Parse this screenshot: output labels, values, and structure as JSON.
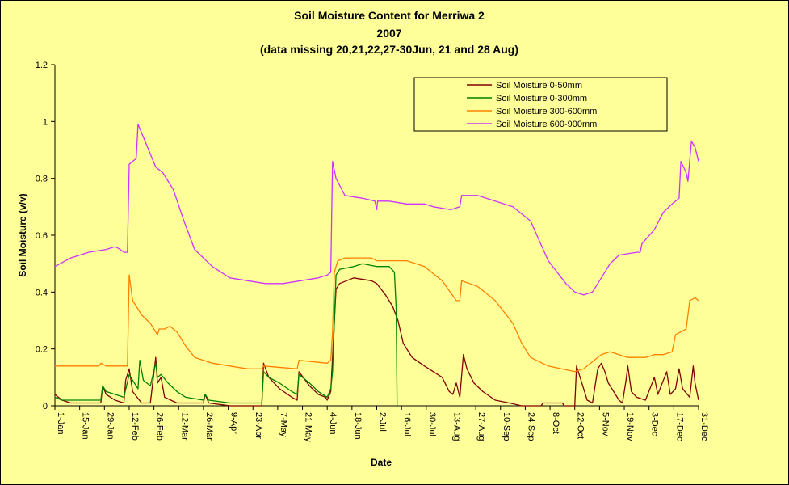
{
  "chart_data": {
    "type": "line",
    "title_lines": [
      "Soil Moisture Content for Merriwa 2",
      "2007",
      "(data missing 20,21,22,27-30Jun, 21 and 28 Aug)"
    ],
    "xlabel": "Date",
    "ylabel": "Soil Moisture (v/v)",
    "ylim": [
      0,
      1.2
    ],
    "yticks": [
      "0",
      "0.2",
      "0.4",
      "0.6",
      "0.8",
      "1",
      "1.2"
    ],
    "xlim": [
      1,
      365
    ],
    "xtick_days": [
      1,
      15,
      29,
      43,
      57,
      71,
      85,
      99,
      113,
      127,
      141,
      155,
      169,
      183,
      197,
      211,
      225,
      239,
      253,
      267,
      281,
      295,
      309,
      323,
      337,
      351,
      365
    ],
    "xtick_labels": [
      "1-Jan",
      "15-Jan",
      "29-Jan",
      "12-Feb",
      "26-Feb",
      "12-Mar",
      "26-Mar",
      "9-Apr",
      "23-Apr",
      "7-May",
      "21-May",
      "4-Jun",
      "18-Jun",
      "2-Jul",
      "16-Jul",
      "30-Jul",
      "13-Aug",
      "27-Aug",
      "10-Sep",
      "24-Sep",
      "8-Oct",
      "22-Oct",
      "5-Nov",
      "19-Nov",
      "3-Dec",
      "17-Dec",
      "31-Dec"
    ],
    "grid": false,
    "legend_position": "top-right",
    "series": [
      {
        "name": "Soil Moisture 0-50mm",
        "color": "#800000",
        "points": [
          [
            1,
            0.04
          ],
          [
            5,
            0.02
          ],
          [
            10,
            0.01
          ],
          [
            20,
            0.01
          ],
          [
            27,
            0.01
          ],
          [
            28,
            0.07
          ],
          [
            30,
            0.04
          ],
          [
            35,
            0.02
          ],
          [
            40,
            0.01
          ],
          [
            41,
            0.09
          ],
          [
            43,
            0.13
          ],
          [
            45,
            0.05
          ],
          [
            50,
            0.01
          ],
          [
            55,
            0.01
          ],
          [
            58,
            0.17
          ],
          [
            59,
            0.08
          ],
          [
            61,
            0.1
          ],
          [
            63,
            0.03
          ],
          [
            70,
            0.01
          ],
          [
            85,
            0.01
          ],
          [
            86,
            0.04
          ],
          [
            88,
            0.01
          ],
          [
            100,
            0
          ],
          [
            118,
            0
          ],
          [
            119,
            0.15
          ],
          [
            122,
            0.1
          ],
          [
            128,
            0.06
          ],
          [
            135,
            0.03
          ],
          [
            138,
            0.02
          ],
          [
            139,
            0.12
          ],
          [
            145,
            0.07
          ],
          [
            150,
            0.04
          ],
          [
            154,
            0.03
          ],
          [
            155,
            0.02
          ],
          [
            157,
            0.05
          ],
          [
            160,
            0.41
          ],
          [
            162,
            0.43
          ],
          [
            170,
            0.45
          ],
          [
            180,
            0.44
          ],
          [
            183,
            0.43
          ],
          [
            188,
            0.39
          ],
          [
            192,
            0.35
          ],
          [
            195,
            0.3
          ],
          [
            198,
            0.22
          ],
          [
            203,
            0.17
          ],
          [
            210,
            0.14
          ],
          [
            220,
            0.1
          ],
          [
            224,
            0.05
          ],
          [
            226,
            0.04
          ],
          [
            228,
            0.08
          ],
          [
            230,
            0.03
          ],
          [
            232,
            0.18
          ],
          [
            234,
            0.13
          ],
          [
            238,
            0.08
          ],
          [
            243,
            0.05
          ],
          [
            250,
            0.02
          ],
          [
            258,
            0.01
          ],
          [
            265,
            0
          ],
          [
            276,
            0
          ],
          [
            277,
            0.01
          ],
          [
            288,
            0.01
          ],
          [
            289,
            0
          ],
          [
            295,
            0
          ],
          [
            296,
            0.14
          ],
          [
            298,
            0.1
          ],
          [
            302,
            0.02
          ],
          [
            305,
            0.01
          ],
          [
            308,
            0.13
          ],
          [
            310,
            0.15
          ],
          [
            312,
            0.12
          ],
          [
            314,
            0.08
          ],
          [
            318,
            0.04
          ],
          [
            320,
            0.02
          ],
          [
            322,
            0.01
          ],
          [
            324,
            0.09
          ],
          [
            325,
            0.14
          ],
          [
            327,
            0.05
          ],
          [
            330,
            0.03
          ],
          [
            335,
            0.02
          ],
          [
            340,
            0.1
          ],
          [
            342,
            0.04
          ],
          [
            347,
            0.12
          ],
          [
            349,
            0.04
          ],
          [
            352,
            0.06
          ],
          [
            354,
            0.13
          ],
          [
            356,
            0.06
          ],
          [
            360,
            0.03
          ],
          [
            362,
            0.14
          ],
          [
            363,
            0.08
          ],
          [
            365,
            0.02
          ]
        ]
      },
      {
        "name": "Soil Moisture 0-300mm",
        "color": "#008000",
        "points": [
          [
            1,
            0.03
          ],
          [
            5,
            0.02
          ],
          [
            10,
            0.02
          ],
          [
            27,
            0.02
          ],
          [
            28,
            0.07
          ],
          [
            30,
            0.05
          ],
          [
            35,
            0.04
          ],
          [
            40,
            0.03
          ],
          [
            43,
            0.11
          ],
          [
            45,
            0.09
          ],
          [
            48,
            0.06
          ],
          [
            49,
            0.16
          ],
          [
            51,
            0.09
          ],
          [
            55,
            0.07
          ],
          [
            58,
            0.15
          ],
          [
            59,
            0.1
          ],
          [
            61,
            0.11
          ],
          [
            65,
            0.08
          ],
          [
            70,
            0.05
          ],
          [
            75,
            0.03
          ],
          [
            85,
            0.02
          ],
          [
            86,
            0.04
          ],
          [
            88,
            0.02
          ],
          [
            100,
            0.01
          ],
          [
            118,
            0.01
          ],
          [
            119,
            0.12
          ],
          [
            122,
            0.1
          ],
          [
            128,
            0.08
          ],
          [
            135,
            0.05
          ],
          [
            138,
            0.04
          ],
          [
            139,
            0.11
          ],
          [
            145,
            0.08
          ],
          [
            150,
            0.05
          ],
          [
            155,
            0.03
          ],
          [
            157,
            0.06
          ],
          [
            158,
            0.12
          ],
          [
            160,
            0.46
          ],
          [
            162,
            0.48
          ],
          [
            170,
            0.49
          ],
          [
            175,
            0.5
          ],
          [
            183,
            0.49
          ],
          [
            190,
            0.49
          ],
          [
            193,
            0.47
          ],
          [
            194,
            0.34
          ],
          [
            194.5,
            0
          ]
        ]
      },
      {
        "name": "Soil Moisture 300-600mm",
        "color": "#ff8000",
        "points": [
          [
            1,
            0.14
          ],
          [
            15,
            0.14
          ],
          [
            26,
            0.14
          ],
          [
            27,
            0.15
          ],
          [
            30,
            0.14
          ],
          [
            42,
            0.14
          ],
          [
            43,
            0.46
          ],
          [
            45,
            0.37
          ],
          [
            50,
            0.32
          ],
          [
            55,
            0.29
          ],
          [
            59,
            0.25
          ],
          [
            60,
            0.27
          ],
          [
            63,
            0.27
          ],
          [
            66,
            0.28
          ],
          [
            70,
            0.26
          ],
          [
            75,
            0.21
          ],
          [
            80,
            0.17
          ],
          [
            90,
            0.15
          ],
          [
            100,
            0.14
          ],
          [
            110,
            0.13
          ],
          [
            118,
            0.13
          ],
          [
            119,
            0.14
          ],
          [
            138,
            0.13
          ],
          [
            139,
            0.16
          ],
          [
            155,
            0.15
          ],
          [
            157,
            0.16
          ],
          [
            158,
            0.26
          ],
          [
            159,
            0.47
          ],
          [
            161,
            0.51
          ],
          [
            165,
            0.52
          ],
          [
            180,
            0.52
          ],
          [
            183,
            0.51
          ],
          [
            190,
            0.51
          ],
          [
            200,
            0.51
          ],
          [
            210,
            0.49
          ],
          [
            220,
            0.44
          ],
          [
            228,
            0.37
          ],
          [
            230,
            0.37
          ],
          [
            231,
            0.44
          ],
          [
            240,
            0.42
          ],
          [
            250,
            0.37
          ],
          [
            260,
            0.29
          ],
          [
            265,
            0.22
          ],
          [
            270,
            0.17
          ],
          [
            280,
            0.14
          ],
          [
            295,
            0.12
          ],
          [
            300,
            0.13
          ],
          [
            310,
            0.18
          ],
          [
            315,
            0.19
          ],
          [
            325,
            0.17
          ],
          [
            335,
            0.17
          ],
          [
            340,
            0.18
          ],
          [
            345,
            0.18
          ],
          [
            350,
            0.19
          ],
          [
            352,
            0.25
          ],
          [
            355,
            0.26
          ],
          [
            358,
            0.27
          ],
          [
            360,
            0.37
          ],
          [
            363,
            0.38
          ],
          [
            365,
            0.37
          ]
        ]
      },
      {
        "name": "Soil Moisture 600-900mm",
        "color": "#cc33ff",
        "points": [
          [
            1,
            0.49
          ],
          [
            10,
            0.52
          ],
          [
            20,
            0.54
          ],
          [
            30,
            0.55
          ],
          [
            35,
            0.56
          ],
          [
            38,
            0.55
          ],
          [
            40,
            0.54
          ],
          [
            42,
            0.54
          ],
          [
            43,
            0.85
          ],
          [
            47,
            0.87
          ],
          [
            48,
            0.99
          ],
          [
            52,
            0.93
          ],
          [
            58,
            0.84
          ],
          [
            62,
            0.82
          ],
          [
            68,
            0.76
          ],
          [
            74,
            0.65
          ],
          [
            80,
            0.55
          ],
          [
            90,
            0.49
          ],
          [
            100,
            0.45
          ],
          [
            110,
            0.44
          ],
          [
            120,
            0.43
          ],
          [
            130,
            0.43
          ],
          [
            140,
            0.44
          ],
          [
            150,
            0.45
          ],
          [
            155,
            0.46
          ],
          [
            157,
            0.47
          ],
          [
            158,
            0.86
          ],
          [
            160,
            0.8
          ],
          [
            165,
            0.74
          ],
          [
            175,
            0.73
          ],
          [
            182,
            0.72
          ],
          [
            183,
            0.69
          ],
          [
            183.5,
            0.72
          ],
          [
            190,
            0.72
          ],
          [
            200,
            0.71
          ],
          [
            210,
            0.71
          ],
          [
            215,
            0.7
          ],
          [
            225,
            0.69
          ],
          [
            230,
            0.7
          ],
          [
            231,
            0.74
          ],
          [
            240,
            0.74
          ],
          [
            250,
            0.72
          ],
          [
            260,
            0.7
          ],
          [
            270,
            0.65
          ],
          [
            275,
            0.58
          ],
          [
            280,
            0.51
          ],
          [
            290,
            0.43
          ],
          [
            295,
            0.4
          ],
          [
            300,
            0.39
          ],
          [
            305,
            0.4
          ],
          [
            310,
            0.45
          ],
          [
            315,
            0.5
          ],
          [
            320,
            0.53
          ],
          [
            330,
            0.54
          ],
          [
            332,
            0.54
          ],
          [
            333,
            0.57
          ],
          [
            340,
            0.62
          ],
          [
            345,
            0.68
          ],
          [
            350,
            0.71
          ],
          [
            354,
            0.73
          ],
          [
            355,
            0.86
          ],
          [
            358,
            0.82
          ],
          [
            359,
            0.79
          ],
          [
            361,
            0.93
          ],
          [
            363,
            0.91
          ],
          [
            365,
            0.86
          ]
        ]
      }
    ]
  }
}
